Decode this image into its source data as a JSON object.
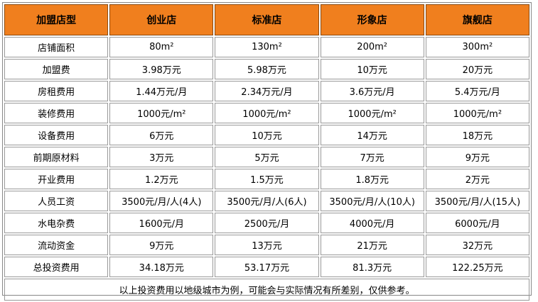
{
  "table": {
    "header": [
      "加盟店型",
      "创业店",
      "标准店",
      "形象店",
      "旗舰店"
    ],
    "rows": [
      [
        "店铺面积",
        "80m²",
        "130m²",
        "200m²",
        "300m²"
      ],
      [
        "加盟费",
        "3.98万元",
        "5.98万元",
        "10万元",
        "20万元"
      ],
      [
        "房租费用",
        "1.44万元/月",
        "2.34万元/月",
        "3.6万元/月",
        "5.4万元/月"
      ],
      [
        "装修费用",
        "1000元/m²",
        "1000元/m²",
        "1000元/m²",
        "1000元/m²"
      ],
      [
        "设备费用",
        "6万元",
        "10万元",
        "14万元",
        "18万元"
      ],
      [
        "前期原材料",
        "3万元",
        "5万元",
        "7万元",
        "9万元"
      ],
      [
        "开业费用",
        "1.2万元",
        "1.5万元",
        "1.8万元",
        "2万元"
      ],
      [
        "人员工资",
        "3500元/月/人(4人)",
        "3500元/月/人(6人)",
        "3500元/月/人(10人)",
        "3500元/月/人(15人)"
      ],
      [
        "水电杂费",
        "1600元/月",
        "2500元/月",
        "4000元/月",
        "6000元/月"
      ],
      [
        "流动资金",
        "9万元",
        "13万元",
        "21万元",
        "32万元"
      ],
      [
        "总投资费用",
        "34.18万元",
        "53.17万元",
        "81.3万元",
        "122.25万元"
      ]
    ],
    "note": "以上投资费用以地级城市为例，可能会与实际情况有所差别，仅供参考。"
  }
}
